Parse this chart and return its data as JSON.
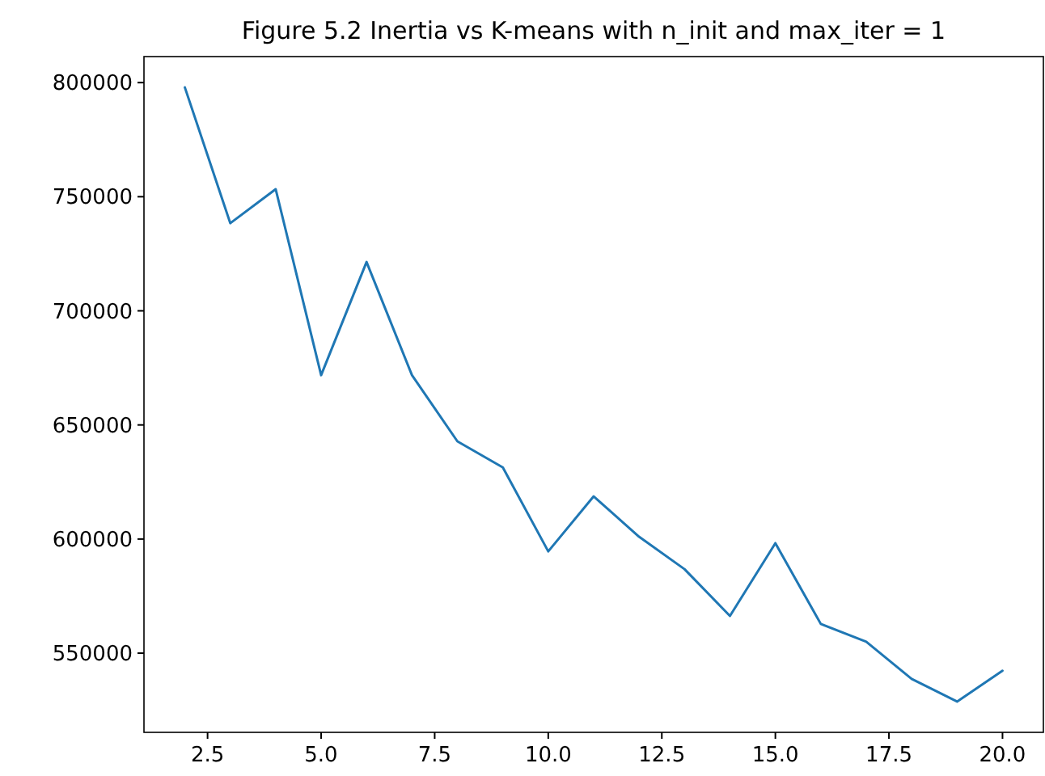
{
  "chart_data": {
    "type": "line",
    "title": "Figure 5.2 Inertia vs K-means with n_init and max_iter = 1",
    "x": [
      2,
      3,
      4,
      5,
      6,
      7,
      8,
      9,
      10,
      11,
      12,
      13,
      14,
      15,
      16,
      17,
      18,
      19,
      20
    ],
    "series": [
      {
        "color": "#1f77b4",
        "values": [
          797900,
          738400,
          753300,
          671800,
          721400,
          671800,
          642800,
          631400,
          594600,
          618700,
          601000,
          586800,
          566300,
          598200,
          562800,
          555000,
          538700,
          528800,
          542300
        ]
      }
    ],
    "xlim": [
      1.1,
      20.9
    ],
    "xticks": [
      {
        "value": 2.5,
        "label": "2.5"
      },
      {
        "value": 5,
        "label": "5.0"
      },
      {
        "value": 7.5,
        "label": "7.5"
      },
      {
        "value": 10,
        "label": "10.0"
      },
      {
        "value": 12.5,
        "label": "12.5"
      },
      {
        "value": 15,
        "label": "15.0"
      },
      {
        "value": 17.5,
        "label": "17.5"
      },
      {
        "value": 20,
        "label": "20.0"
      }
    ],
    "ylim": [
      515300,
      811400
    ],
    "yticks": [
      550000,
      600000,
      650000,
      700000,
      750000,
      800000
    ],
    "grid": false,
    "marker": "none",
    "line_style": "solid"
  }
}
